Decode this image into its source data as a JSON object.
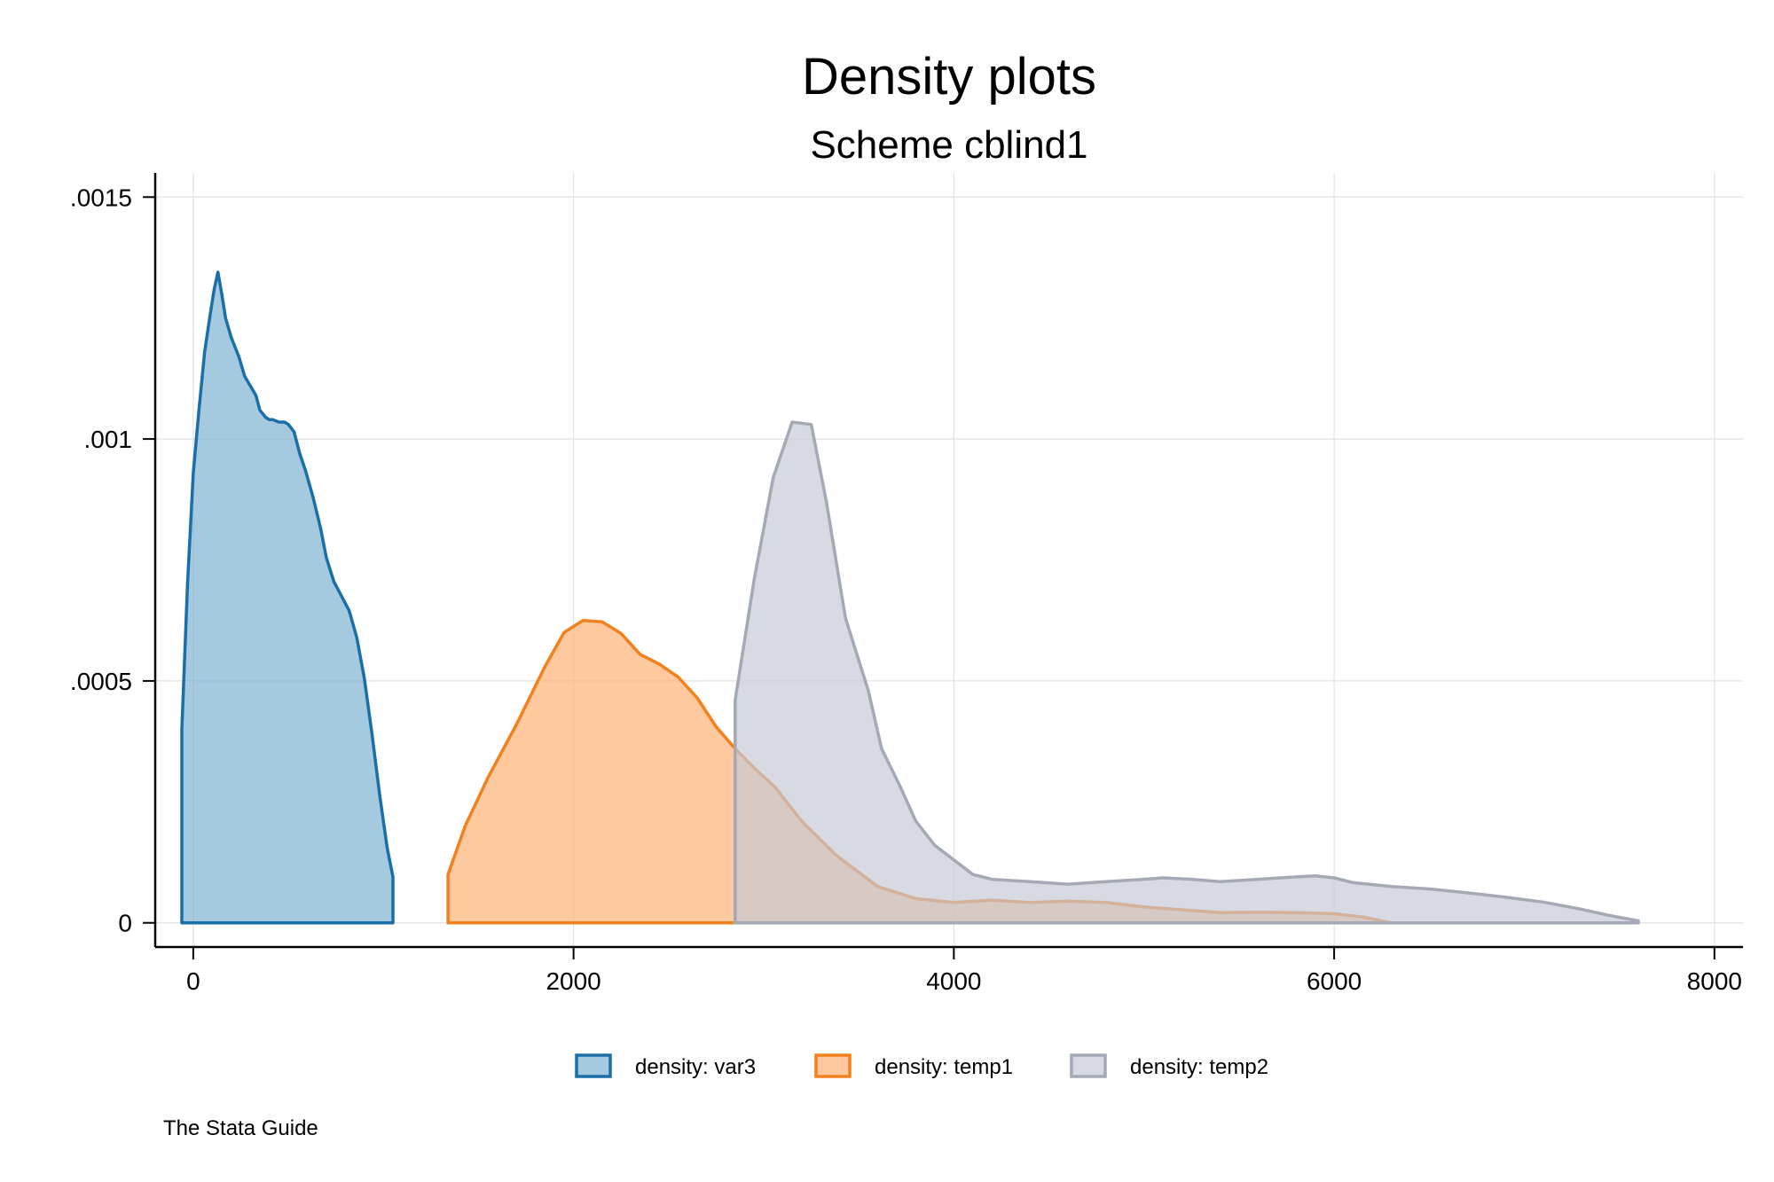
{
  "chart_data": {
    "type": "area",
    "title": "Density plots",
    "subtitle": "Scheme cblind1",
    "note": "The Stata Guide",
    "xlim": [
      -200,
      8150
    ],
    "ylim": [
      -5e-05,
      0.00155
    ],
    "x_ticks": [
      {
        "value": 0,
        "label": "0"
      },
      {
        "value": 2000,
        "label": "2000"
      },
      {
        "value": 4000,
        "label": "4000"
      },
      {
        "value": 6000,
        "label": "6000"
      },
      {
        "value": 8000,
        "label": "8000"
      }
    ],
    "y_ticks": [
      {
        "value": 0,
        "label": "0"
      },
      {
        "value": 0.0005,
        "label": ".0005"
      },
      {
        "value": 0.001,
        "label": ".001"
      },
      {
        "value": 0.0015,
        "label": ".0015"
      }
    ],
    "grid": true,
    "legend_position": "bottom",
    "series": [
      {
        "name": "density: var3",
        "line_color": "#1a6fa8",
        "fill_color": "#7aafd0",
        "points": [
          [
            -60,
            0.0004
          ],
          [
            -30,
            0.0007
          ],
          [
            0,
            0.00093
          ],
          [
            30,
            0.00106
          ],
          [
            60,
            0.00118
          ],
          [
            90,
            0.00126
          ],
          [
            110,
            0.00131
          ],
          [
            130,
            0.001345
          ],
          [
            150,
            0.0013
          ],
          [
            170,
            0.00125
          ],
          [
            200,
            0.00121
          ],
          [
            240,
            0.00117
          ],
          [
            270,
            0.00113
          ],
          [
            300,
            0.00111
          ],
          [
            330,
            0.00109
          ],
          [
            350,
            0.00106
          ],
          [
            380,
            0.001045
          ],
          [
            400,
            0.00104
          ],
          [
            420,
            0.00104
          ],
          [
            450,
            0.001035
          ],
          [
            480,
            0.001035
          ],
          [
            500,
            0.00103
          ],
          [
            530,
            0.001015
          ],
          [
            560,
            0.00097
          ],
          [
            590,
            0.000935
          ],
          [
            630,
            0.00088
          ],
          [
            670,
            0.000815
          ],
          [
            700,
            0.000755
          ],
          [
            740,
            0.000705
          ],
          [
            780,
            0.000675
          ],
          [
            820,
            0.000645
          ],
          [
            860,
            0.00059
          ],
          [
            900,
            0.000505
          ],
          [
            940,
            0.00039
          ],
          [
            980,
            0.000265
          ],
          [
            1020,
            0.000155
          ],
          [
            1050,
            9.5e-05
          ],
          [
            1050,
            0
          ]
        ]
      },
      {
        "name": "density: temp1",
        "line_color": "#f2811d",
        "fill_color": "#fdb071",
        "points": [
          [
            1340,
            0.0001
          ],
          [
            1430,
            0.0002
          ],
          [
            1550,
            0.0003
          ],
          [
            1700,
            0.00041
          ],
          [
            1850,
            0.00053
          ],
          [
            1950,
            0.0006
          ],
          [
            2050,
            0.000625
          ],
          [
            2150,
            0.000622
          ],
          [
            2250,
            0.000598
          ],
          [
            2350,
            0.000555
          ],
          [
            2450,
            0.000535
          ],
          [
            2550,
            0.000508
          ],
          [
            2650,
            0.000465
          ],
          [
            2750,
            0.000405
          ],
          [
            2850,
            0.00036
          ],
          [
            2950,
            0.00032
          ],
          [
            3060,
            0.00028
          ],
          [
            3200,
            0.00021
          ],
          [
            3380,
            0.00014
          ],
          [
            3600,
            7.5e-05
          ],
          [
            3800,
            5e-05
          ],
          [
            4000,
            4.2e-05
          ],
          [
            4200,
            4.7e-05
          ],
          [
            4400,
            4.2e-05
          ],
          [
            4600,
            4.5e-05
          ],
          [
            4800,
            4.2e-05
          ],
          [
            5000,
            3.3e-05
          ],
          [
            5200,
            2.7e-05
          ],
          [
            5400,
            2.1e-05
          ],
          [
            5600,
            2.2e-05
          ],
          [
            5800,
            2.1e-05
          ],
          [
            6000,
            1.9e-05
          ],
          [
            6150,
            1.2e-05
          ],
          [
            6250,
            4e-06
          ],
          [
            6300,
            0
          ]
        ]
      },
      {
        "name": "density: temp2",
        "line_color": "#a3a9b5",
        "fill_color": "#c4c9d5",
        "points": [
          [
            2850,
            0.00046
          ],
          [
            2950,
            0.00071
          ],
          [
            3050,
            0.00092
          ],
          [
            3150,
            0.001035
          ],
          [
            3250,
            0.00103
          ],
          [
            3330,
            0.00087
          ],
          [
            3430,
            0.00063
          ],
          [
            3550,
            0.00048
          ],
          [
            3620,
            0.00036
          ],
          [
            3720,
            0.00028
          ],
          [
            3800,
            0.00021
          ],
          [
            3900,
            0.00016
          ],
          [
            4000,
            0.00013
          ],
          [
            4100,
            0.0001
          ],
          [
            4200,
            9e-05
          ],
          [
            4400,
            8.5e-05
          ],
          [
            4600,
            8e-05
          ],
          [
            4800,
            8.5e-05
          ],
          [
            5000,
            9e-05
          ],
          [
            5100,
            9.3e-05
          ],
          [
            5250,
            9e-05
          ],
          [
            5400,
            8.5e-05
          ],
          [
            5600,
            9e-05
          ],
          [
            5800,
            9.5e-05
          ],
          [
            5900,
            9.7e-05
          ],
          [
            6000,
            9.3e-05
          ],
          [
            6100,
            8.3e-05
          ],
          [
            6300,
            7.5e-05
          ],
          [
            6500,
            7e-05
          ],
          [
            6700,
            6.2e-05
          ],
          [
            6900,
            5.3e-05
          ],
          [
            7100,
            4.3e-05
          ],
          [
            7300,
            2.8e-05
          ],
          [
            7450,
            1.5e-05
          ],
          [
            7600,
            4e-06
          ],
          [
            7600,
            0
          ]
        ]
      }
    ]
  }
}
